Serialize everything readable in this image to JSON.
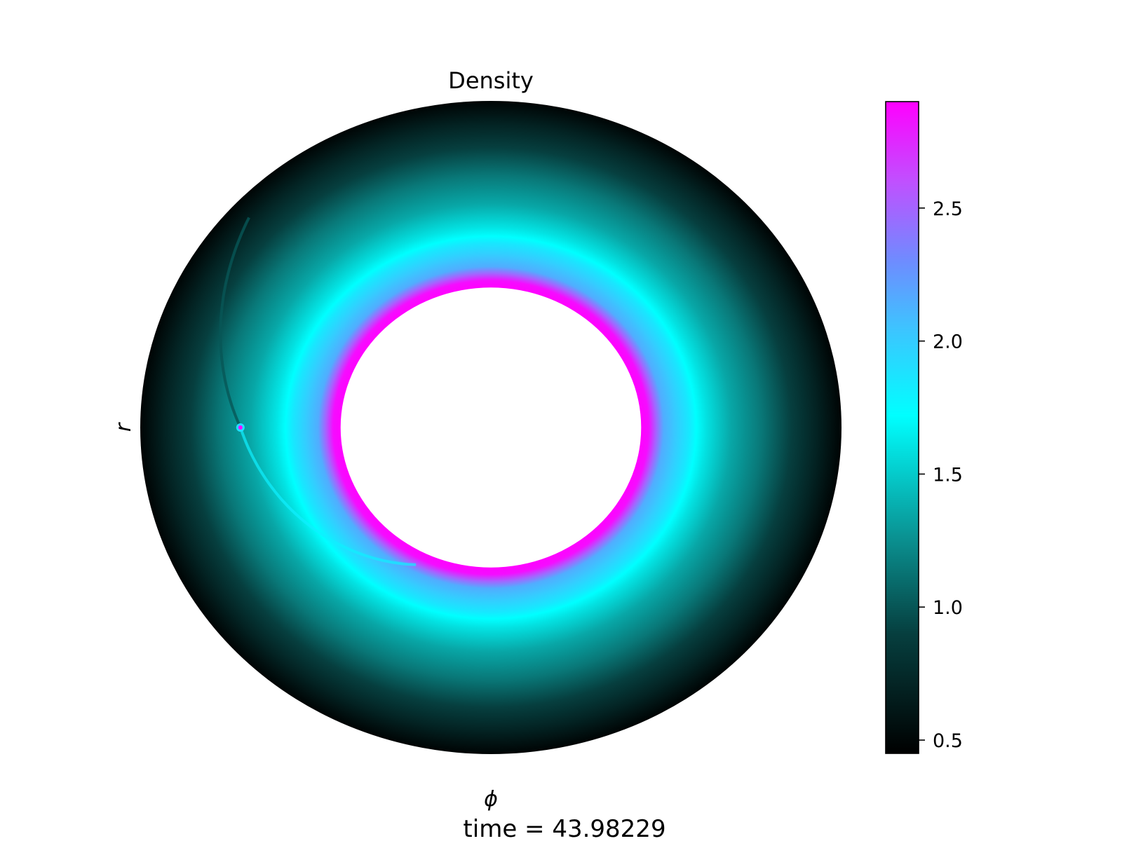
{
  "chart_data": {
    "type": "heatmap",
    "projection": "polar",
    "title": "Density",
    "xlabel": "ϕ",
    "ylabel": "r",
    "footer": "time = 43.98229",
    "colorbar": {
      "min": 0.45,
      "max": 2.9,
      "ticks": [
        0.5,
        1.0,
        1.5,
        2.0,
        2.5
      ],
      "tick_labels": [
        "0.5",
        "1.0",
        "1.5",
        "2.0",
        "2.5"
      ],
      "colormap": [
        {
          "value": 0.45,
          "color": "#000000"
        },
        {
          "value": 0.9,
          "color": "#063f3f"
        },
        {
          "value": 1.25,
          "color": "#0a8f8f"
        },
        {
          "value": 1.72,
          "color": "#00ffff"
        },
        {
          "value": 2.05,
          "color": "#3ec3ff"
        },
        {
          "value": 2.3,
          "color": "#6e8cff"
        },
        {
          "value": 2.6,
          "color": "#c050ff"
        },
        {
          "value": 2.9,
          "color": "#ff00ff"
        }
      ]
    },
    "disk": {
      "inner_radius": 0.6,
      "outer_radius": 1.4,
      "radial_profile": [
        {
          "r": 0.6,
          "density": 2.9
        },
        {
          "r": 0.63,
          "density": 2.85
        },
        {
          "r": 0.66,
          "density": 2.5
        },
        {
          "r": 0.69,
          "density": 2.15
        },
        {
          "r": 0.74,
          "density": 2.0
        },
        {
          "r": 0.79,
          "density": 1.85
        },
        {
          "r": 0.82,
          "density": 1.72
        },
        {
          "r": 0.86,
          "density": 1.6
        },
        {
          "r": 0.96,
          "density": 1.35
        },
        {
          "r": 1.08,
          "density": 1.15
        },
        {
          "r": 1.2,
          "density": 0.9
        },
        {
          "r": 1.3,
          "density": 0.7
        },
        {
          "r": 1.4,
          "density": 0.48
        }
      ],
      "planet": {
        "r": 1.0,
        "phi_deg": 180,
        "density": 2.9
      }
    }
  }
}
